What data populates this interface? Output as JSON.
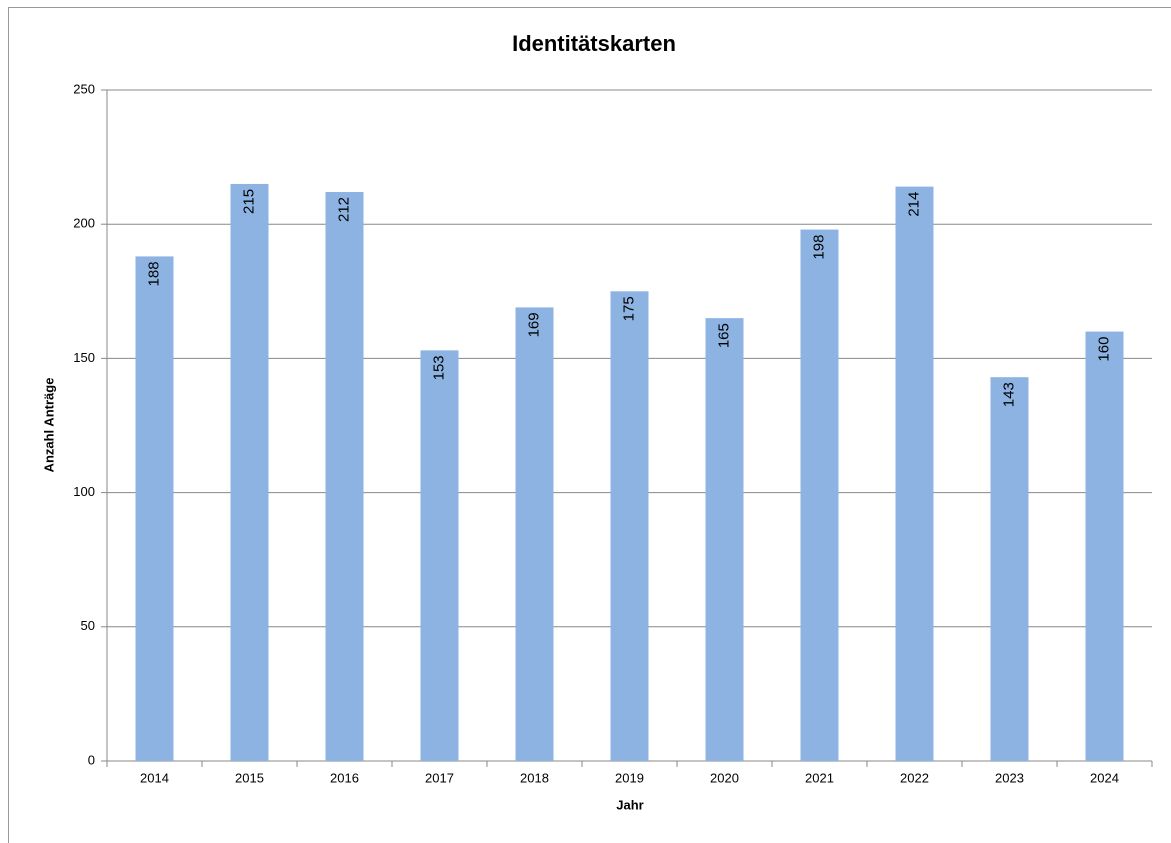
{
  "chart_data": {
    "type": "bar",
    "title": "Identitätskarten",
    "x_label": "Jahr",
    "y_label": "Anzahl Anträge",
    "categories": [
      "2014",
      "2015",
      "2016",
      "2017",
      "2018",
      "2019",
      "2020",
      "2021",
      "2022",
      "2023",
      "2024"
    ],
    "values": [
      188,
      215,
      212,
      153,
      169,
      175,
      165,
      198,
      214,
      143,
      160
    ],
    "color": "#8db3e2",
    "ylim": [
      0,
      250
    ],
    "yticks": [
      0,
      50,
      100,
      150,
      200,
      250
    ],
    "grid": true
  }
}
